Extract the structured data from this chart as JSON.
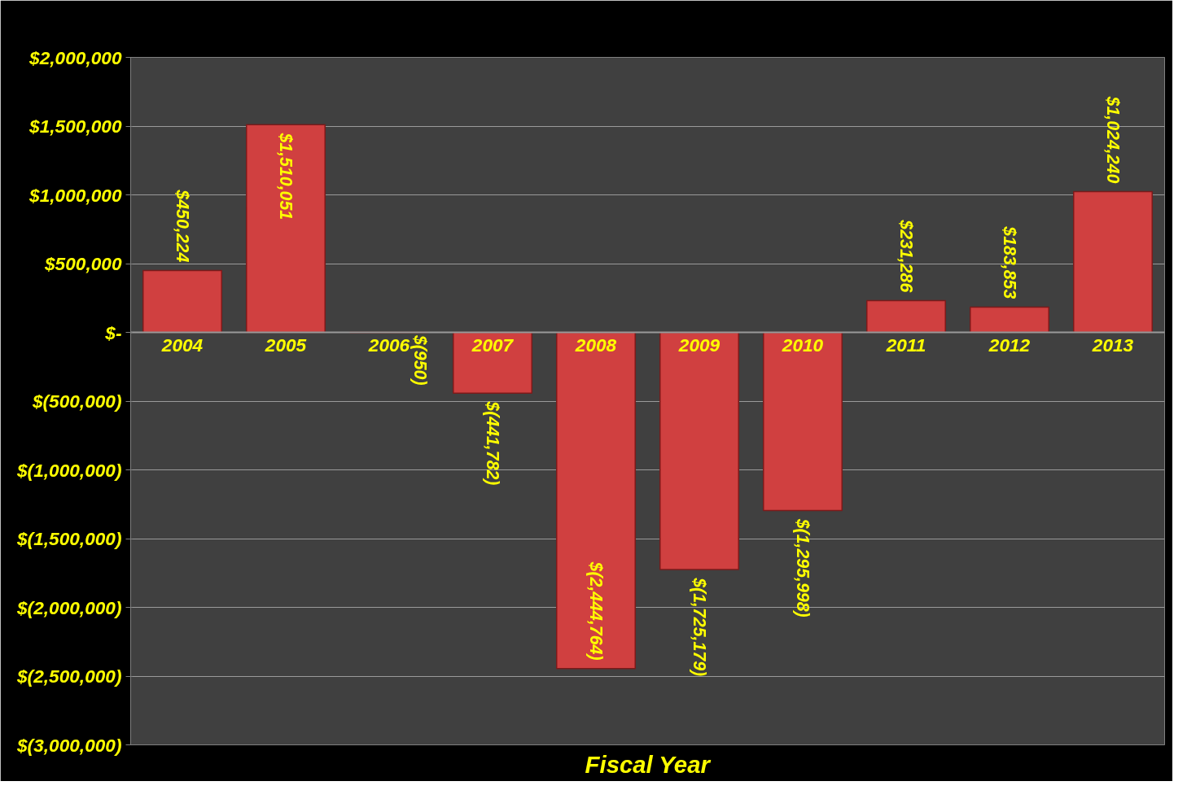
{
  "chart_data": {
    "type": "bar",
    "xlabel": "Fiscal Year",
    "categories": [
      "2004",
      "2005",
      "2006",
      "2007",
      "2008",
      "2009",
      "2010",
      "2011",
      "2012",
      "2013"
    ],
    "values": [
      450224,
      1510051,
      -950,
      -441782,
      -2444764,
      -1725179,
      -1295998,
      231286,
      183853,
      1024240
    ],
    "value_labels": [
      "$450,224",
      "$1,510,051",
      "$(950)",
      "$(441,782)",
      "$(2,444,764)",
      "$(1,725,179)",
      "$(1,295,998)",
      "$231,286",
      "$183,853",
      "$1,024,240"
    ],
    "color": "#d04040",
    "ylim": [
      -3000000,
      2000000
    ],
    "yticks": [
      {
        "value": 2000000,
        "label": "$2,000,000"
      },
      {
        "value": 1500000,
        "label": "$1,500,000"
      },
      {
        "value": 1000000,
        "label": "$1,000,000"
      },
      {
        "value": 500000,
        "label": "$500,000"
      },
      {
        "value": 0,
        "label": "$-"
      },
      {
        "value": -500000,
        "label": "$(500,000)"
      },
      {
        "value": -1000000,
        "label": "$(1,000,000)"
      },
      {
        "value": -1500000,
        "label": "$(1,500,000)"
      },
      {
        "value": -2000000,
        "label": "$(2,000,000)"
      },
      {
        "value": -2500000,
        "label": "$(2,500,000)"
      },
      {
        "value": -3000000,
        "label": "$(3,000,000)"
      }
    ],
    "grid": "y"
  }
}
